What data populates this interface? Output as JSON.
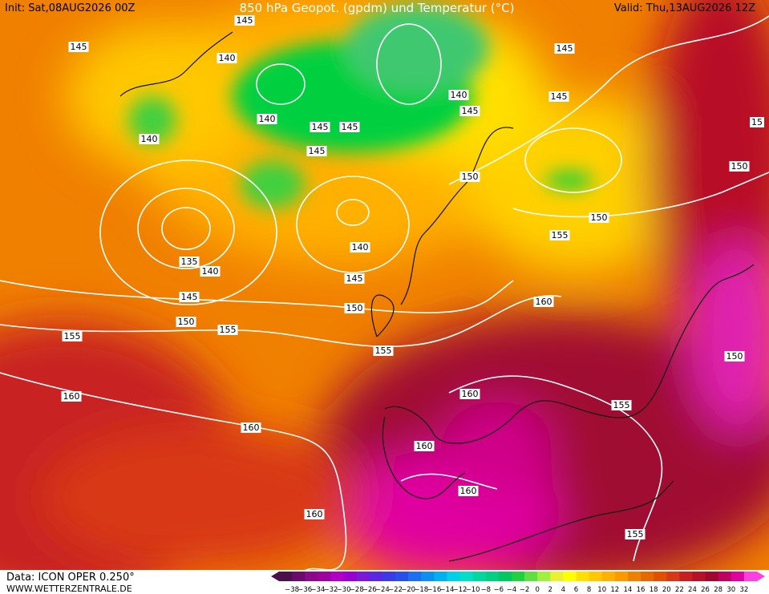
{
  "header": {
    "init": "Init: Sat,08AUG2026 00Z",
    "title": "850 hPa Geopot. (gpdm) und Temperatur (°C)",
    "valid": "Valid: Thu,13AUG2026 12Z"
  },
  "footer": {
    "source": "Data: ICON OPER 0.250°",
    "url": "WWW.WETTERZENTRALE.DE"
  },
  "colorbar": {
    "labels": [
      "−38",
      "−36",
      "−34",
      "−32",
      "−30",
      "−28",
      "−26",
      "−24",
      "−22",
      "−20",
      "−18",
      "−16",
      "−14",
      "−12",
      "−10",
      "−8",
      "−6",
      "−4",
      "−2",
      "0",
      "2",
      "4",
      "6",
      "8",
      "10",
      "12",
      "14",
      "16",
      "18",
      "20",
      "22",
      "24",
      "26",
      "28",
      "30",
      "32"
    ],
    "colors": [
      "#4b0f4b",
      "#6a0a6a",
      "#8a0a8a",
      "#a000a0",
      "#b000c8",
      "#9a00d0",
      "#7a1ad8",
      "#5a28e0",
      "#3a3ae8",
      "#2850e8",
      "#1a70f0",
      "#0a90f0",
      "#00b0f0",
      "#00d0e8",
      "#00e0c8",
      "#00d8a0",
      "#00d080",
      "#00c860",
      "#20d040",
      "#60e040",
      "#a0f040",
      "#e8f030",
      "#ffff00",
      "#ffe000",
      "#ffc800",
      "#ffb000",
      "#ff9800",
      "#f08000",
      "#e86800",
      "#e05000",
      "#d83818",
      "#c82020",
      "#b81028",
      "#a00830",
      "#c00060",
      "#e000a0",
      "#ff40e0"
    ]
  },
  "contour_labels": [
    "145",
    "145",
    "140",
    "140",
    "145",
    "145",
    "145",
    "140",
    "140",
    "145",
    "145",
    "145",
    "150",
    "150",
    "150",
    "155",
    "140",
    "135",
    "140",
    "145",
    "145",
    "150",
    "150",
    "155",
    "155",
    "155",
    "160",
    "160",
    "160",
    "155",
    "160",
    "160",
    "160",
    "160",
    "155",
    "150",
    "15"
  ]
}
